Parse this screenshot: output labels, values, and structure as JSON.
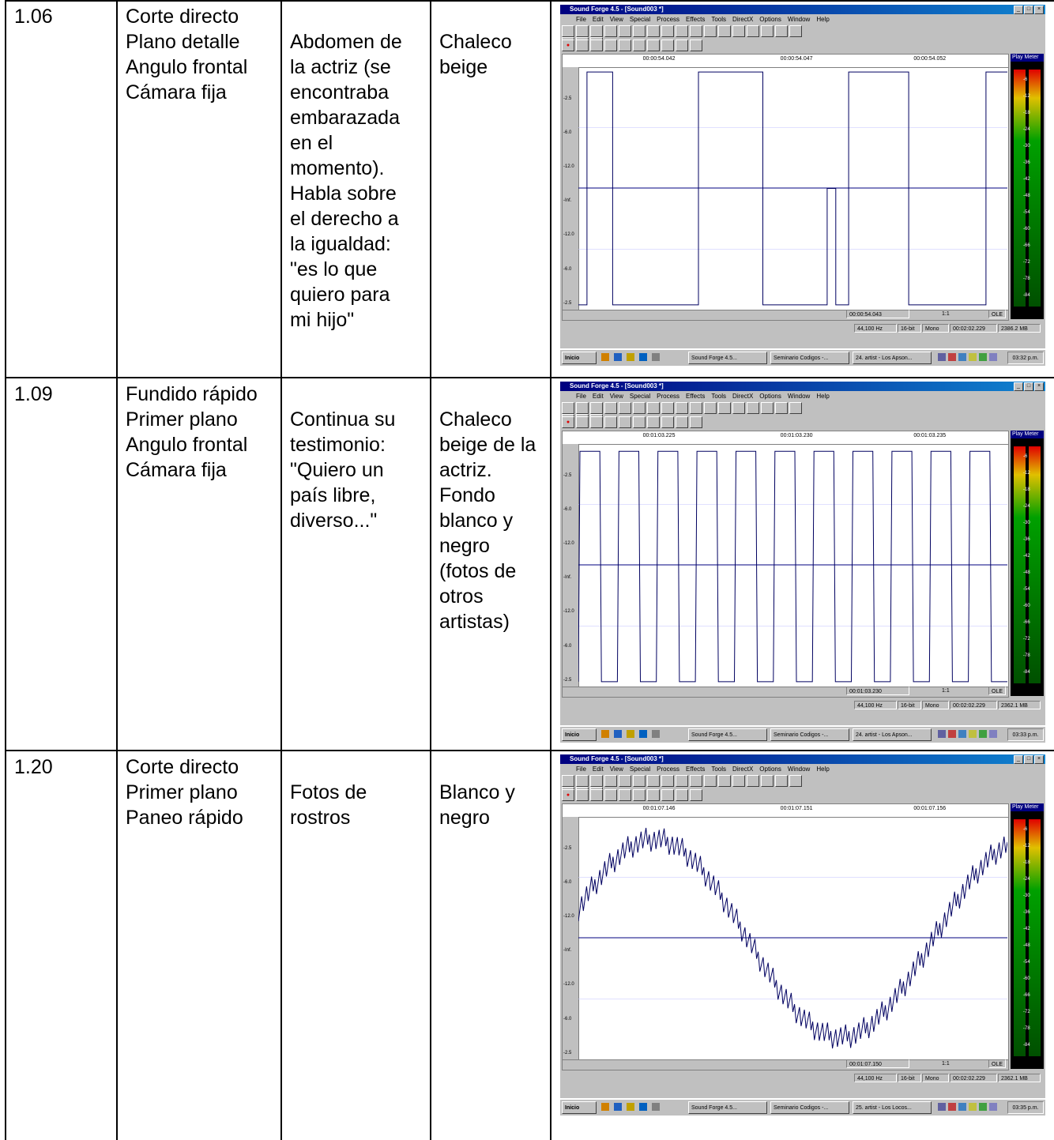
{
  "rows": [
    {
      "time": "1.06",
      "shot": "Corte directo\nPlano detalle\nAngulo frontal\nCámara fija",
      "description": "Abdomen de\nla actriz (se\nencontraba\nembarazada\nen el\nmomento).\nHabla sobre\nel derecho a\nla igualdad:\n\"es lo que\nquiero para\nmi hijo\"",
      "color": "Chaleco\nbeige",
      "screenshot": {
        "title": "Sound Forge 4.5 - [Sound003 *]",
        "ruler": [
          "00:00:54.042",
          "00:00:54.047",
          "00:00:54.052"
        ],
        "position": "00:00:54.043",
        "sample_rate": "44,100 Hz",
        "bits": "16-bit",
        "channels": "Mono",
        "length": "00:02:02.229",
        "free": "2386.2 MB",
        "task_artist": "24. artist - Los Apson...",
        "clock": "03:32 p.m.",
        "zoom": "1:1"
      }
    },
    {
      "time": "1.09",
      "shot": "Fundido rápido\nPrimer plano\nAngulo frontal\nCámara fija",
      "description": "Continua su\ntestimonio:\n\"Quiero un\npaís libre,\ndiverso...\"",
      "color": "Chaleco\nbeige de la\nactriz.\nFondo\nblanco y\nnegro\n(fotos de\notros\nartistas)",
      "screenshot": {
        "title": "Sound Forge 4.5 - [Sound003 *]",
        "ruler": [
          "00:01:03.225",
          "00:01:03.230",
          "00:01:03.235"
        ],
        "position": "00:01:03.230",
        "sample_rate": "44,100 Hz",
        "bits": "16-bit",
        "channels": "Mono",
        "length": "00:02:02.229",
        "free": "2362.1 MB",
        "task_artist": "24. artist - Los Apson...",
        "clock": "03:33 p.m.",
        "zoom": "1:1"
      }
    },
    {
      "time": "1.20",
      "shot": "Corte directo\nPrimer plano\nPaneo rápido",
      "description": "Fotos de\nrostros",
      "color": "Blanco y\nnegro",
      "screenshot": {
        "title": "Sound Forge 4.5 - [Sound003 *]",
        "ruler": [
          "00:01:07.146",
          "00:01:07.151",
          "00:01:07.156"
        ],
        "position": "00:01:07.150",
        "sample_rate": "44,100 Hz",
        "bits": "16-bit",
        "channels": "Mono",
        "length": "00:02:02.229",
        "free": "2362.1 MB",
        "task_artist": "25. artist - Los Locos...",
        "clock": "03:35 p.m.",
        "zoom": "1:1"
      }
    }
  ],
  "sf_common": {
    "menu": [
      "File",
      "Edit",
      "View",
      "Special",
      "Process",
      "Effects",
      "Tools",
      "DirectX",
      "Options",
      "Window",
      "Help"
    ],
    "scale": [
      "-2.5",
      "-6.0",
      "-12.0",
      "-Inf.",
      "-12.0",
      "-6.0",
      "-2.5"
    ],
    "meter_title": "Play Meter",
    "meter_scale": [
      "-6",
      "-12",
      "-18",
      "-24",
      "-30",
      "-36",
      "-42",
      "-48",
      "-54",
      "-60",
      "-66",
      "-72",
      "-78",
      "-84"
    ],
    "ole": "OLE",
    "start": "Inicio",
    "task_sf": "Sound Forge 4.5...",
    "task_doc": "Seminario Codigos -..."
  }
}
